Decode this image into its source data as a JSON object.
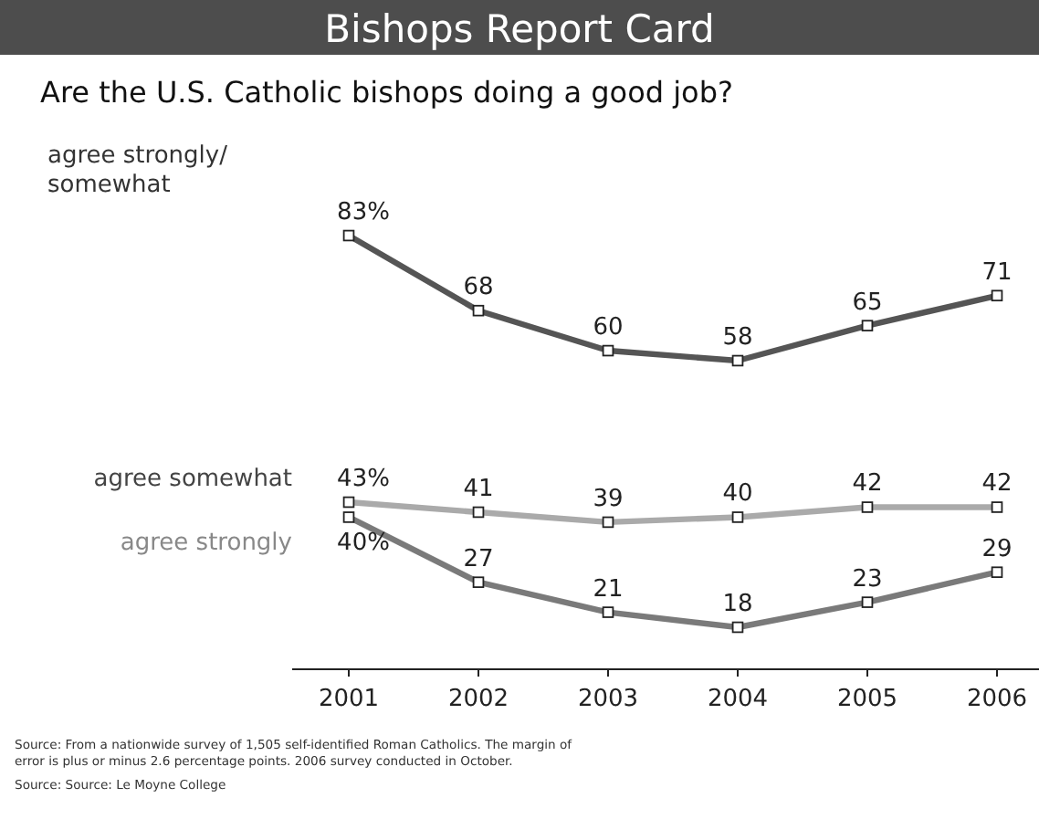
{
  "chart_data": [
    {
      "type": "line",
      "title": "Bishops Report Card",
      "subtitle": "Are the U.S. Catholic bishops doing a good job?",
      "tick_labels": false,
      "data_labels": true,
      "marker": "square",
      "line_style": "solid",
      "series": [
        {
          "name": "agree strongly/ somewhat",
          "color": "#555555",
          "values": [
            83,
            68,
            60,
            58,
            65,
            71
          ],
          "value_labels": [
            "83%",
            "68",
            "60",
            "58",
            "65",
            "71"
          ]
        }
      ]
    },
    {
      "type": "line",
      "categories": [
        "2001",
        "2002",
        "2003",
        "2004",
        "2005",
        "2006"
      ],
      "tick_labels": "x",
      "data_labels": true,
      "marker": "square",
      "line_style": "solid",
      "annotations": [
        "Source: From a nationwide survey of 1,505 self-identified Roman Catholics. The margin of error is plus or minus 2.6 percentage points. 2006 survey conducted in October.",
        "Source: Source: Le Moyne College"
      ],
      "series": [
        {
          "name": "agree somewhat",
          "color": "#aaaaaa",
          "values": [
            43,
            41,
            39,
            40,
            42,
            42
          ],
          "value_labels": [
            "43%",
            "41",
            "39",
            "40",
            "42",
            "42"
          ]
        },
        {
          "name": "agree strongly",
          "color": "#7a7a7a",
          "values": [
            40,
            27,
            21,
            18,
            23,
            29
          ],
          "value_labels": [
            "40%",
            "27",
            "21",
            "18",
            "23",
            "29"
          ]
        }
      ]
    }
  ]
}
